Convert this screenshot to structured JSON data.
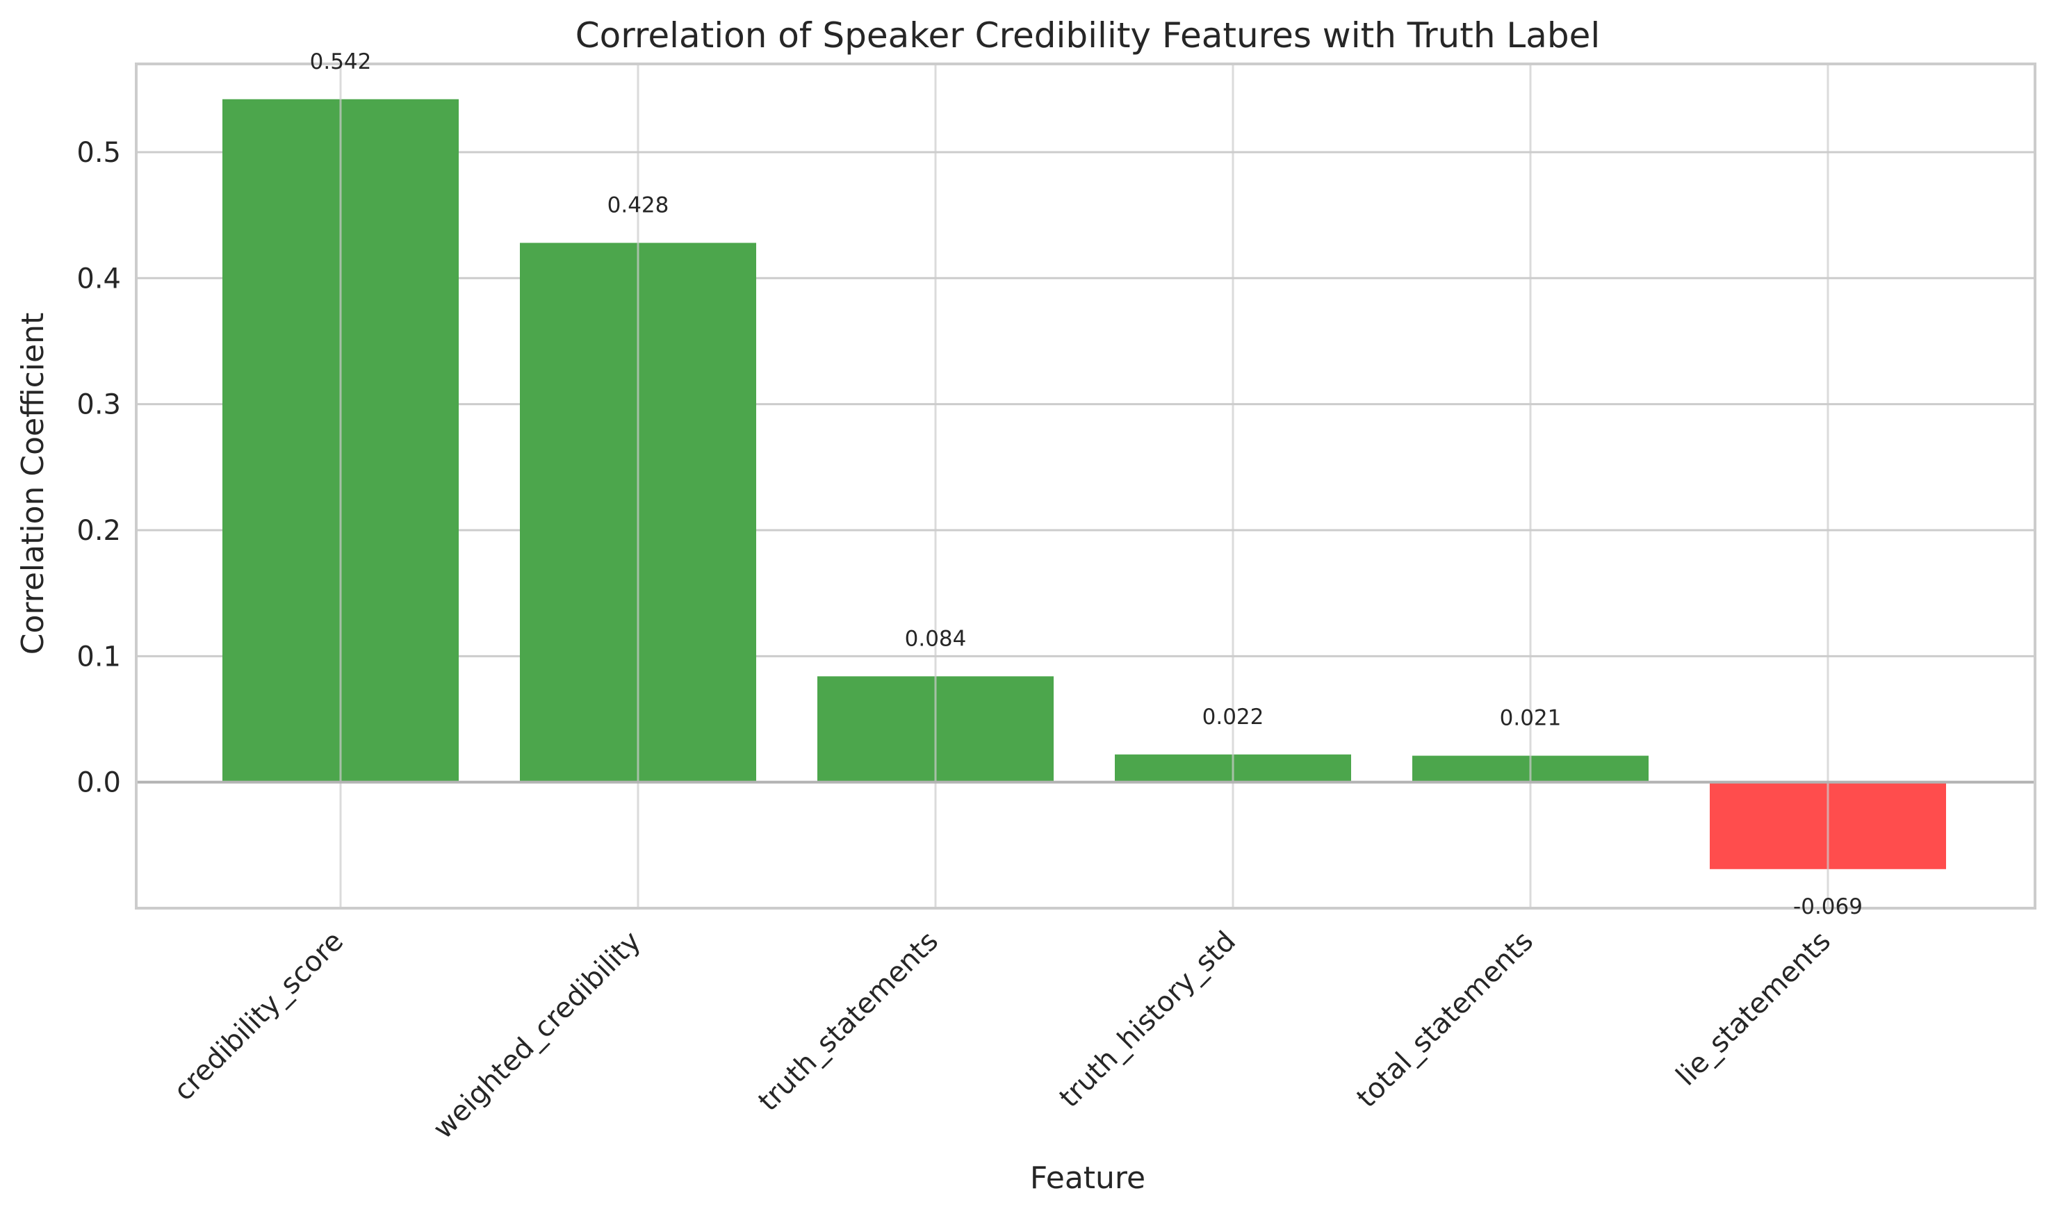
{
  "chart_data": {
    "type": "bar",
    "title": "Correlation of Speaker Credibility Features with Truth Label",
    "xlabel": "Feature",
    "ylabel": "Correlation Coefficient",
    "categories": [
      "credibility_score",
      "weighted_credibility",
      "truth_statements",
      "truth_history_std",
      "total_statements",
      "lie_statements"
    ],
    "values": [
      0.542,
      0.428,
      0.084,
      0.022,
      0.021,
      -0.069
    ],
    "value_labels": [
      "0.542",
      "0.428",
      "0.084",
      "0.022",
      "0.021",
      "-0.069"
    ],
    "ylim": [
      -0.1,
      0.57
    ],
    "yticks": [
      0.0,
      0.1,
      0.2,
      0.3,
      0.4,
      0.5
    ],
    "ytick_labels": [
      "0.0",
      "0.1",
      "0.2",
      "0.3",
      "0.4",
      "0.5"
    ],
    "grid": true,
    "colors": {
      "positive": "#4ca64c",
      "negative": "#ff4d4d"
    }
  }
}
